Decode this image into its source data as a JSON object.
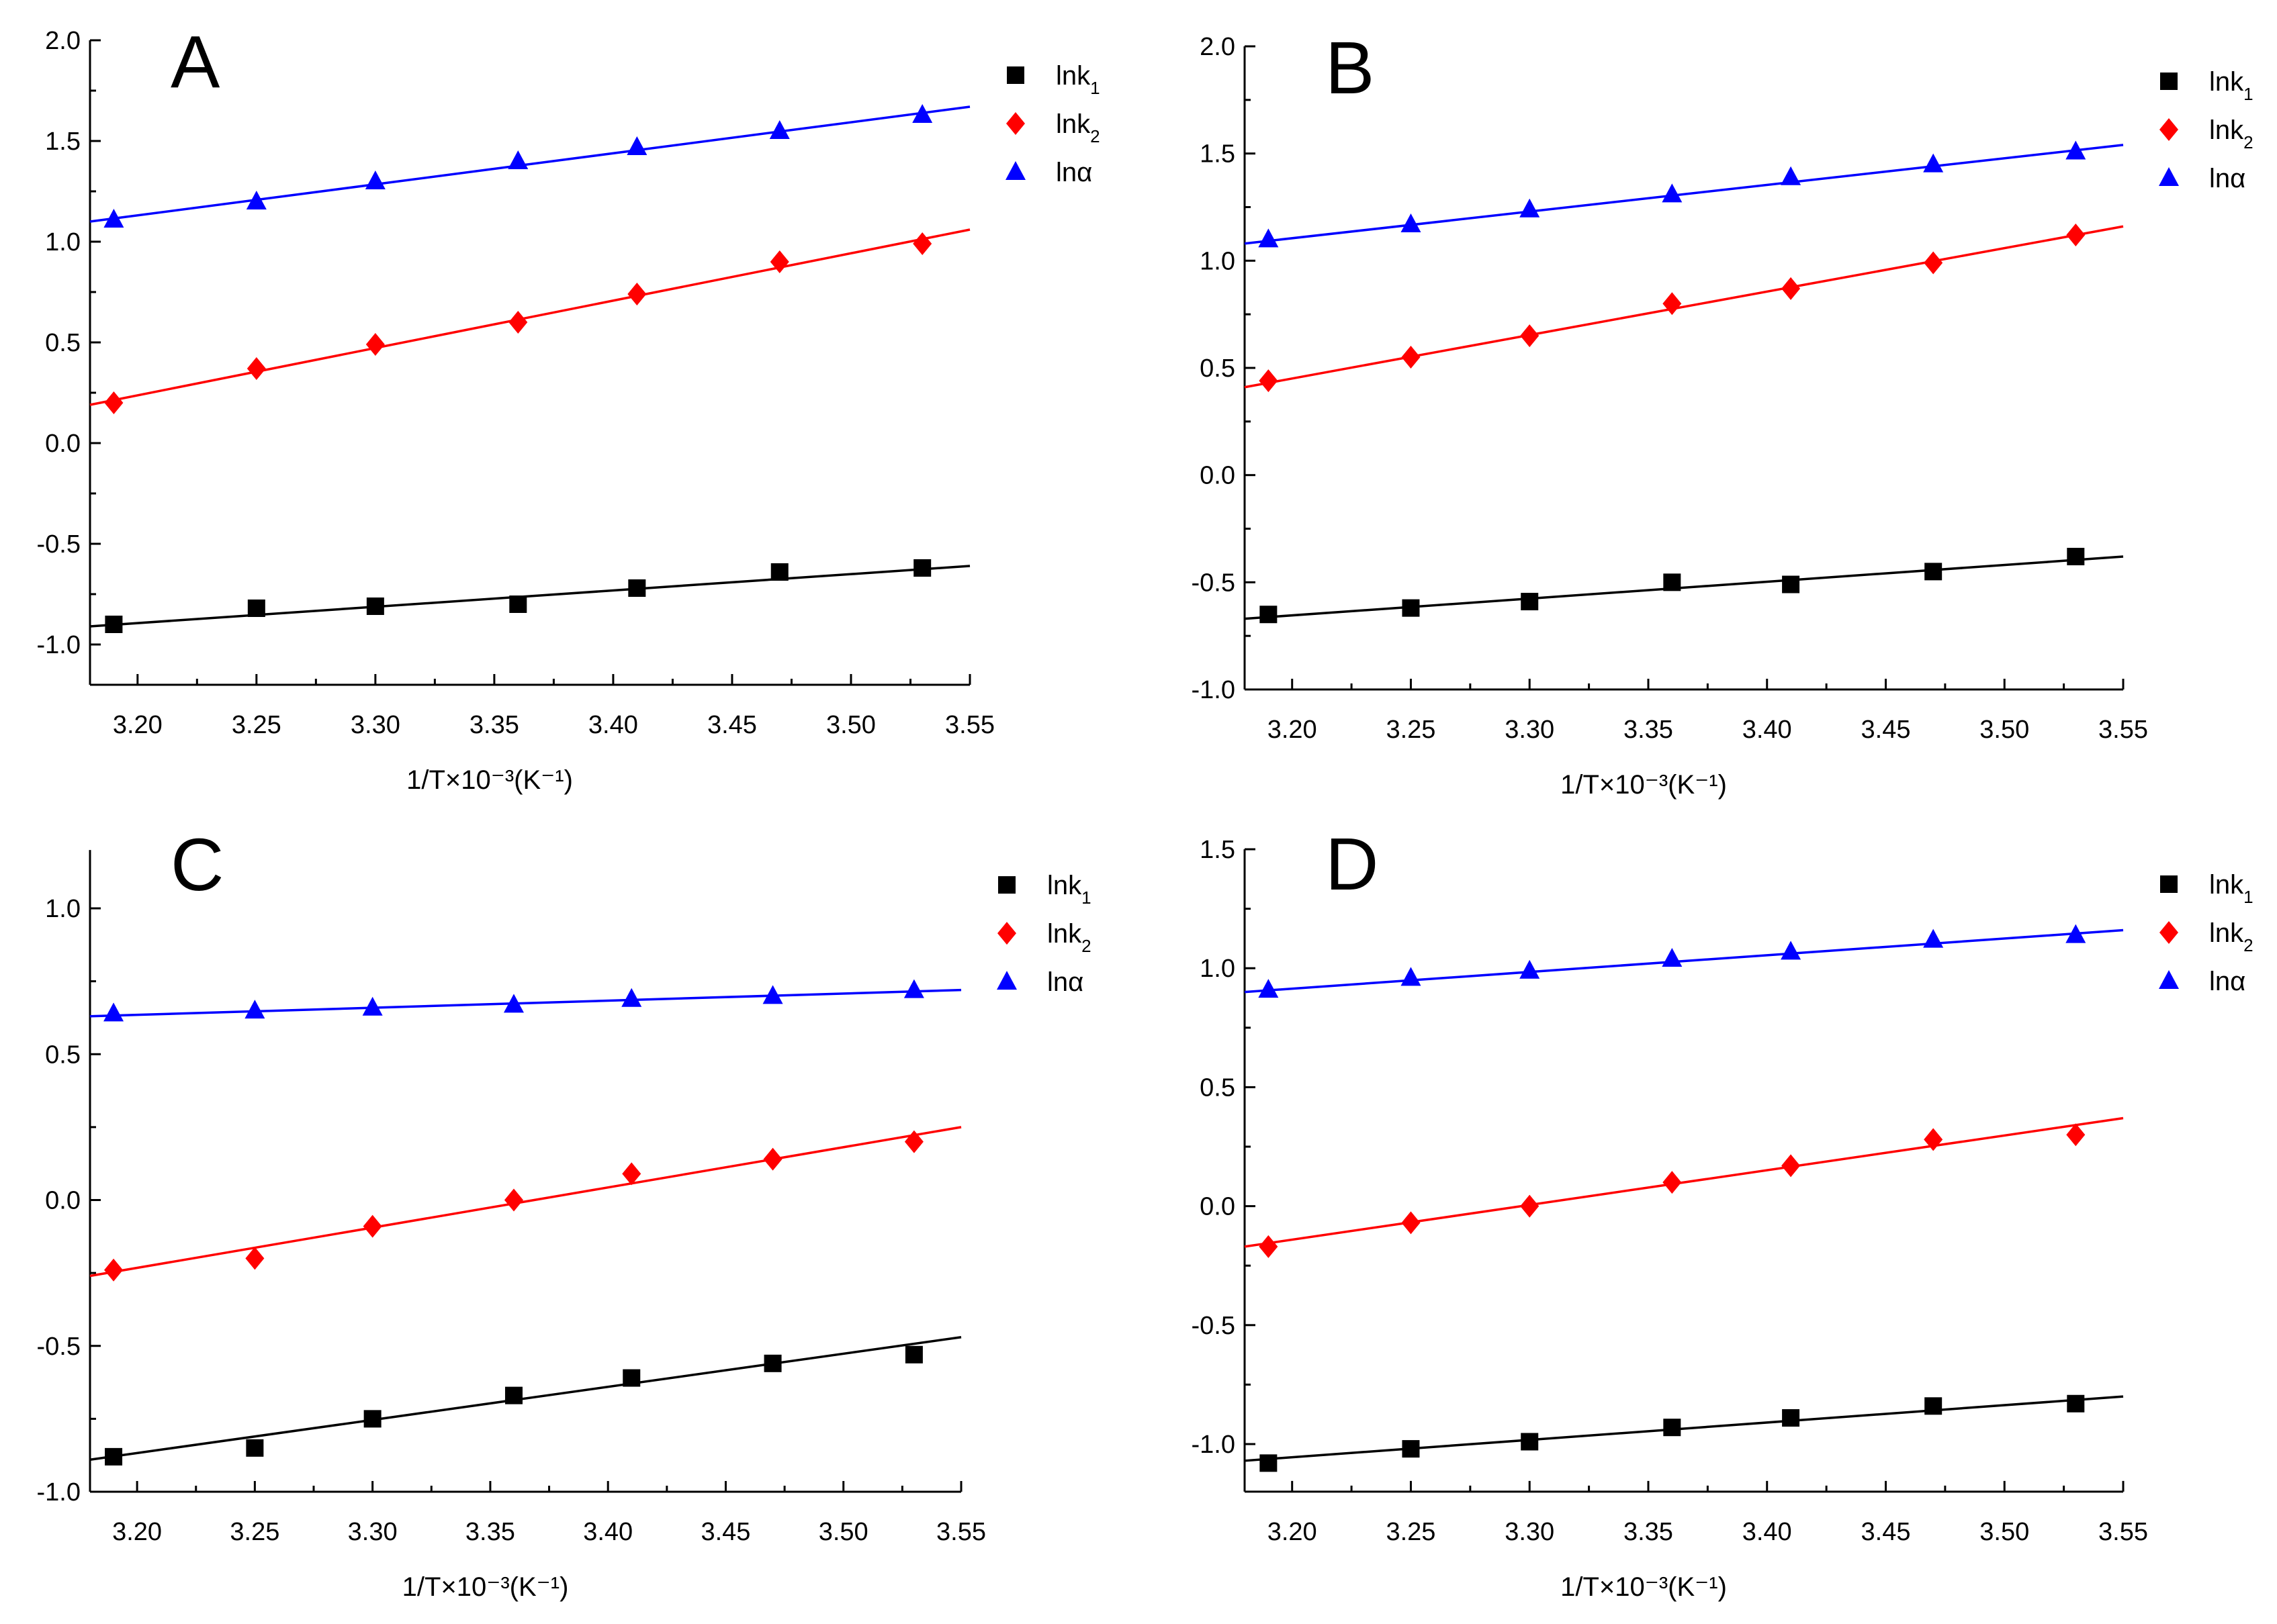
{
  "chart_data": [
    {
      "type": "scatter",
      "panel_label": "A",
      "xlabel": "1/T×10⁻³(K⁻¹)",
      "xlim": [
        3.18,
        3.55
      ],
      "xticks": [
        "3.20",
        "3.25",
        "3.30",
        "3.35",
        "3.40",
        "3.45",
        "3.50",
        "3.55"
      ],
      "ylim": [
        -1.2,
        2.0
      ],
      "yticks": [
        "-1.0",
        "-0.5",
        "0.0",
        "0.5",
        "1.0",
        "1.5",
        "2.0"
      ],
      "legend_position": "top-right",
      "x": [
        3.19,
        3.25,
        3.3,
        3.36,
        3.41,
        3.47,
        3.53
      ],
      "series": [
        {
          "name": "lnk",
          "sub": "1",
          "marker": "square",
          "color": "#000000",
          "values": [
            -0.9,
            -0.82,
            -0.81,
            -0.8,
            -0.72,
            -0.64,
            -0.62
          ],
          "fit": [
            -0.91,
            -0.61
          ]
        },
        {
          "name": "lnk",
          "sub": "2",
          "marker": "diamond",
          "color": "#ff0000",
          "values": [
            0.2,
            0.37,
            0.49,
            0.6,
            0.74,
            0.9,
            0.99
          ],
          "fit": [
            0.19,
            1.06
          ]
        },
        {
          "name": "lnα",
          "sub": "",
          "marker": "triangle",
          "color": "#0000ff",
          "values": [
            1.11,
            1.2,
            1.3,
            1.4,
            1.47,
            1.55,
            1.63
          ],
          "fit": [
            1.1,
            1.67
          ]
        }
      ]
    },
    {
      "type": "scatter",
      "panel_label": "B",
      "xlabel": "1/T×10⁻³(K⁻¹)",
      "xlim": [
        3.18,
        3.55
      ],
      "xticks": [
        "3.20",
        "3.25",
        "3.30",
        "3.35",
        "3.40",
        "3.45",
        "3.50",
        "3.55"
      ],
      "ylim": [
        -1.0,
        2.0
      ],
      "yticks": [
        "-1.0",
        "-0.5",
        "0.0",
        "0.5",
        "1.0",
        "1.5",
        "2.0"
      ],
      "legend_position": "top-right",
      "x": [
        3.19,
        3.25,
        3.3,
        3.36,
        3.41,
        3.47,
        3.53
      ],
      "series": [
        {
          "name": "lnk",
          "sub": "1",
          "marker": "square",
          "color": "#000000",
          "values": [
            -0.65,
            -0.62,
            -0.59,
            -0.5,
            -0.51,
            -0.45,
            -0.38
          ],
          "fit": [
            -0.67,
            -0.38
          ]
        },
        {
          "name": "lnk",
          "sub": "2",
          "marker": "diamond",
          "color": "#ff0000",
          "values": [
            0.44,
            0.55,
            0.65,
            0.8,
            0.87,
            0.99,
            1.12
          ],
          "fit": [
            0.41,
            1.16
          ]
        },
        {
          "name": "lnα",
          "sub": "",
          "marker": "triangle",
          "color": "#0000ff",
          "values": [
            1.1,
            1.17,
            1.24,
            1.31,
            1.39,
            1.45,
            1.51
          ],
          "fit": [
            1.08,
            1.54
          ]
        }
      ]
    },
    {
      "type": "scatter",
      "panel_label": "C",
      "xlabel": "1/T×10⁻³(K⁻¹)",
      "xlim": [
        3.18,
        3.55
      ],
      "xticks": [
        "3.20",
        "3.25",
        "3.30",
        "3.35",
        "3.40",
        "3.45",
        "3.50",
        "3.55"
      ],
      "ylim": [
        -1.0,
        1.2
      ],
      "yticks": [
        "-1.0",
        "-0.5",
        "0.0",
        "0.5",
        "1.0"
      ],
      "legend_position": "top-right",
      "x": [
        3.19,
        3.25,
        3.3,
        3.36,
        3.41,
        3.47,
        3.53
      ],
      "series": [
        {
          "name": "lnk",
          "sub": "1",
          "marker": "square",
          "color": "#000000",
          "values": [
            -0.88,
            -0.85,
            -0.75,
            -0.67,
            -0.61,
            -0.56,
            -0.53
          ],
          "fit": [
            -0.89,
            -0.47
          ]
        },
        {
          "name": "lnk",
          "sub": "2",
          "marker": "diamond",
          "color": "#ff0000",
          "values": [
            -0.24,
            -0.2,
            -0.09,
            0.0,
            0.09,
            0.14,
            0.2
          ],
          "fit": [
            -0.26,
            0.25
          ]
        },
        {
          "name": "lnα",
          "sub": "",
          "marker": "triangle",
          "color": "#0000ff",
          "values": [
            0.64,
            0.65,
            0.66,
            0.67,
            0.69,
            0.7,
            0.72
          ],
          "fit": [
            0.63,
            0.72
          ]
        }
      ]
    },
    {
      "type": "scatter",
      "panel_label": "D",
      "xlabel": "1/T×10⁻³(K⁻¹)",
      "xlim": [
        3.18,
        3.55
      ],
      "xticks": [
        "3.20",
        "3.25",
        "3.30",
        "3.35",
        "3.40",
        "3.45",
        "3.50",
        "3.55"
      ],
      "ylim": [
        -1.2,
        1.5
      ],
      "yticks": [
        "-1.0",
        "-0.5",
        "0.0",
        "0.5",
        "1.0",
        "1.5"
      ],
      "legend_position": "top-right",
      "x": [
        3.19,
        3.25,
        3.3,
        3.36,
        3.41,
        3.47,
        3.53
      ],
      "series": [
        {
          "name": "lnk",
          "sub": "1",
          "marker": "square",
          "color": "#000000",
          "values": [
            -1.08,
            -1.02,
            -0.99,
            -0.93,
            -0.89,
            -0.84,
            -0.83
          ],
          "fit": [
            -1.07,
            -0.8
          ]
        },
        {
          "name": "lnk",
          "sub": "2",
          "marker": "diamond",
          "color": "#ff0000",
          "values": [
            -0.17,
            -0.07,
            0.0,
            0.1,
            0.17,
            0.28,
            0.3
          ],
          "fit": [
            -0.17,
            0.37
          ]
        },
        {
          "name": "lnα",
          "sub": "",
          "marker": "triangle",
          "color": "#0000ff",
          "values": [
            0.91,
            0.96,
            0.99,
            1.04,
            1.07,
            1.12,
            1.14
          ],
          "fit": [
            0.9,
            1.16
          ]
        }
      ]
    }
  ]
}
